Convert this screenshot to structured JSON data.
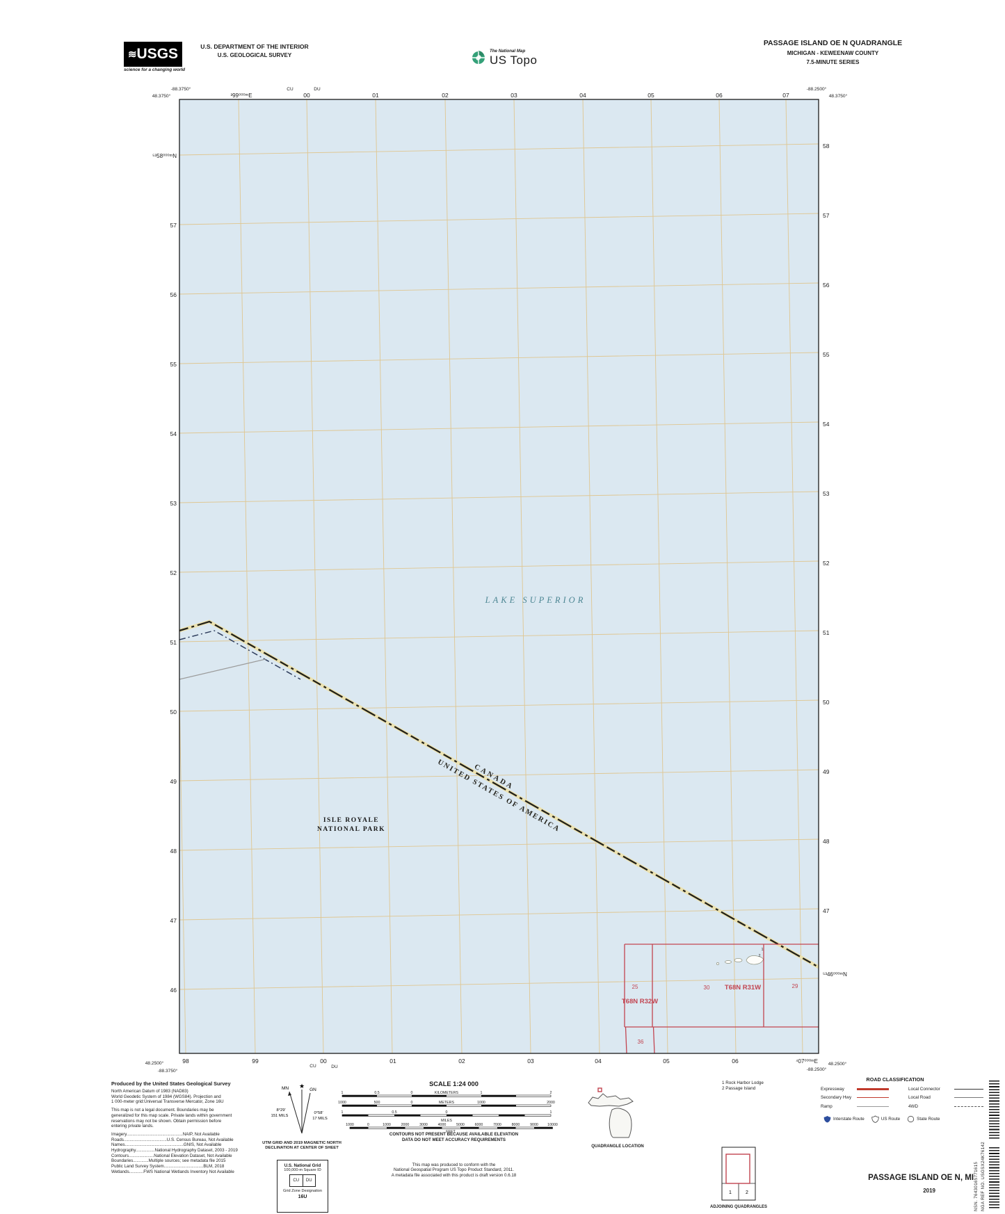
{
  "header": {
    "usgs_wave": "≋",
    "usgs_logo_text": "USGS",
    "usgs_tagline": "science for a changing world",
    "dept_line1": "U.S. DEPARTMENT OF THE INTERIOR",
    "dept_line2": "U.S. GEOLOGICAL SURVEY",
    "ustopo_small": "The National Map",
    "ustopo_large": "US Topo",
    "quad_title": "PASSAGE ISLAND OE N QUADRANGLE",
    "quad_subtitle1": "MICHIGAN - KEWEENAW COUNTY",
    "quad_subtitle2": "7.5-MINUTE SERIES"
  },
  "map": {
    "water_color": "#dbe8f1",
    "grid_color": "#dfc691",
    "boundary_halo_color": "#ece2b0",
    "red_color": "#c24450",
    "collar": {
      "top_left_lon": "-88.3750°",
      "top_left_lat": "48.3750°",
      "top_right_lon": "-88.2500°",
      "top_right_lat": "48.3750°",
      "bottom_left_lat": "48.2500°",
      "bottom_left_lon": "-88.3750°",
      "bottom_right_lon": "-88.2500°",
      "bottom_right_lat": "48.2500°",
      "top_eastings": [
        "³99⁰⁰⁰ᵐE",
        "00",
        "01",
        "02",
        "03",
        "04",
        "05",
        "06",
        "07"
      ],
      "bottom_eastings": [
        "98",
        "99",
        "00",
        "01",
        "02",
        "03",
        "04",
        "05",
        "06",
        "⁴07⁰⁰⁰ᵐE"
      ],
      "left_northings": [
        "⁵³58⁰⁰⁰ᵐN",
        "57",
        "56",
        "55",
        "54",
        "53",
        "52",
        "51",
        "50",
        "49",
        "48",
        "47",
        "46"
      ],
      "right_northings": [
        "58",
        "57",
        "56",
        "55",
        "54",
        "53",
        "52",
        "51",
        "50",
        "49",
        "48",
        "47",
        "⁵³46⁰⁰⁰ᵐN"
      ],
      "grid_zone_top": [
        "CU",
        "DU"
      ],
      "grid_zone_bottom": [
        "CU",
        "DU"
      ]
    },
    "labels": {
      "lake": "LAKE SUPERIOR",
      "park_line1": "ISLE ROYALE",
      "park_line2": "NATIONAL PARK",
      "boundary_top": "CANADA",
      "boundary_bottom": "UNITED STATES OF AMERICA"
    },
    "plss": {
      "s25": "25",
      "s30": "30",
      "s29": "29",
      "s36": "36",
      "t31": "T68N R31W",
      "t32": "T68N R32W"
    },
    "island_refs": [
      "1",
      "2"
    ]
  },
  "footer": {
    "producer": {
      "title": "Produced by the United States Geological Survey",
      "datum_lines": [
        "North American Datum of 1983 (NAD83)",
        "World Geodetic System of 1984 (WGS84). Projection and",
        "1 000-meter grid:Universal Transverse Mercator, Zone 16U"
      ],
      "legal_lines": [
        "This map is not a legal document. Boundaries may be",
        "generalized for this map scale. Private lands within government",
        "reservations may not be shown. Obtain permission before",
        "entering private lands."
      ],
      "sources": [
        "Imagery...............................................NAIP, Not Available",
        "Roads....................................U.S. Census Bureau, Not Available",
        "Names.................................................GNIS, Not Available",
        "Hydrography................National Hydrography Dataset, 2003 - 2019",
        "Contours.....................National Elevation Dataset, Not Available",
        "Boundaries.............Multiple sources; see metadata file  2015",
        "Public Land Survey System.................................BLM, 2018",
        "Wetlands............FWS National Wetlands Inventory  Not Available"
      ]
    },
    "declination": {
      "mn_label": "MN",
      "gn_label": "GN",
      "star": "★",
      "mn_deg": "8°29′",
      "mn_mils": "151 MILS",
      "gn_deg": "0°58′",
      "gn_mils": "17 MILS",
      "caption1": "UTM GRID AND 2019 MAGNETIC NORTH",
      "caption2": "DECLINATION AT CENTER OF SHEET"
    },
    "usng": {
      "title": "U.S. National Grid",
      "subtitle": "100,000-m Square ID",
      "cells": [
        "CU",
        "DU"
      ],
      "gzd_label": "Grid Zone Designation",
      "gzd": "16U"
    },
    "scale": {
      "title": "SCALE 1:24 000",
      "km_ticks": [
        "1",
        "0.5",
        "0",
        "1",
        "2"
      ],
      "km_label": "KILOMETERS",
      "m_ticks": [
        "1000",
        "500",
        "0",
        "1000",
        "2000"
      ],
      "m_label": "METERS",
      "mi_ticks": [
        "1",
        "0.5",
        "0",
        "1"
      ],
      "mi_label": "MILES",
      "ft_ticks": [
        "1000",
        "0",
        "1000",
        "2000",
        "3000",
        "4000",
        "5000",
        "6000",
        "7000",
        "8000",
        "9000",
        "10000"
      ],
      "ft_label": "FEET"
    },
    "contour_note": [
      "CONTOURS NOT PRESENT BECAUSE AVAILABLE ELEVATION",
      "DATA DO NOT MEET ACCURACY REQUIREMENTS"
    ],
    "product_note": [
      "This map was produced to conform with the",
      "National Geospatial Program US Topo Product Standard, 2011.",
      "A metadata file associated with this product is draft version 0.6.18"
    ],
    "location_caption": "QUADRANGLE LOCATION",
    "adjoining": {
      "notes": [
        "1 Rock Harbor Lodge",
        "2 Passage Island"
      ],
      "cells": [
        "1",
        "2"
      ],
      "caption": "ADJOINING QUADRANGLES"
    },
    "roads": {
      "title": "ROAD CLASSIFICATION",
      "left_labels": [
        "Expressway",
        "Secondary Hwy",
        "Ramp"
      ],
      "right_labels": [
        "Local Connector",
        "Local Road",
        "4WD"
      ],
      "shield_labels": [
        "Interstate Route",
        "US Route",
        "State Route"
      ]
    },
    "title_block": {
      "title": "PASSAGE ISLAND OE N,  MI",
      "year": "2019"
    },
    "sidebar": {
      "nsn": "NSN.  76430165771615",
      "nga": "NGA REF NO.  USGSX24K76142"
    }
  }
}
